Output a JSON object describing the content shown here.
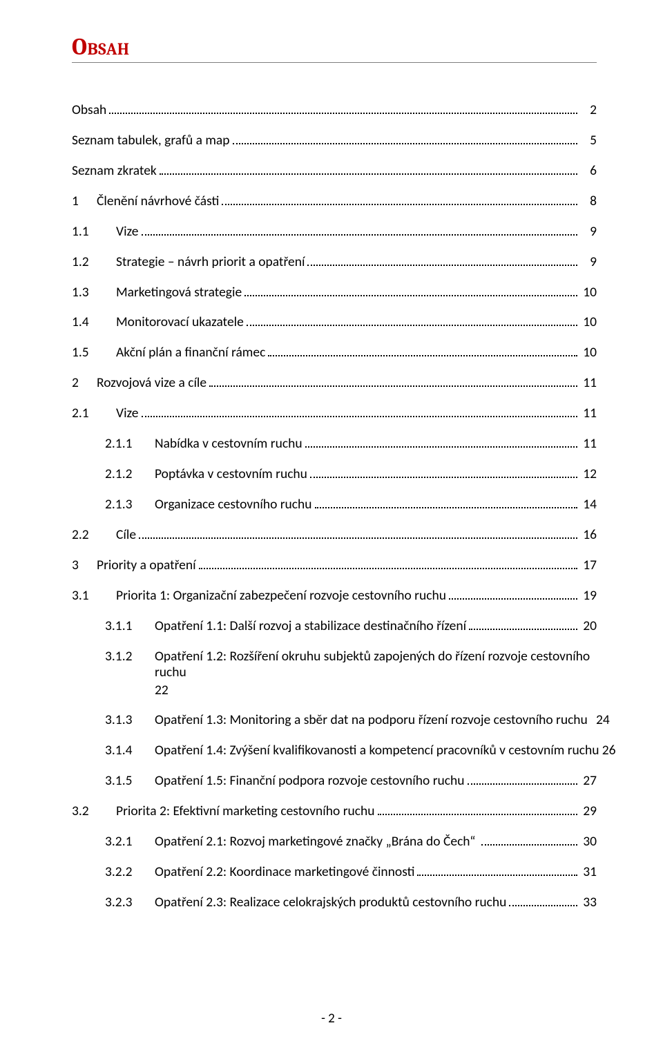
{
  "heading": "Obsah",
  "footer": "- 2 -",
  "colors": {
    "heading": "#c00000",
    "rule": "#7f7f7f",
    "text": "#000000",
    "background": "#ffffff",
    "leader": "#000000"
  },
  "fonts": {
    "heading_family": "Cambria",
    "body_family": "Calibri",
    "heading_size_pt": 26,
    "body_size_pt": 15
  },
  "toc": [
    {
      "level": 0,
      "num": "",
      "label": "Obsah",
      "page": "2"
    },
    {
      "level": 0,
      "num": "",
      "label": "Seznam tabulek, grafů a map",
      "page": "5"
    },
    {
      "level": 0,
      "num": "",
      "label": "Seznam zkratek",
      "page": "6"
    },
    {
      "level": 0,
      "num": "1",
      "label": "Členění návrhové části",
      "page": "8",
      "top": true
    },
    {
      "level": 1,
      "num": "1.1",
      "label": "Vize",
      "page": "9"
    },
    {
      "level": 1,
      "num": "1.2",
      "label": "Strategie – návrh priorit a opatření",
      "page": "9"
    },
    {
      "level": 1,
      "num": "1.3",
      "label": "Marketingová strategie",
      "page": "10"
    },
    {
      "level": 1,
      "num": "1.4",
      "label": "Monitorovací ukazatele",
      "page": "10"
    },
    {
      "level": 1,
      "num": "1.5",
      "label": "Akční plán a finanční rámec",
      "page": "10"
    },
    {
      "level": 0,
      "num": "2",
      "label": "Rozvojová vize a cíle",
      "page": "11",
      "top": true
    },
    {
      "level": 1,
      "num": "2.1",
      "label": "Vize",
      "page": "11"
    },
    {
      "level": 2,
      "num": "2.1.1",
      "label": "Nabídka v cestovním ruchu",
      "page": "11"
    },
    {
      "level": 2,
      "num": "2.1.2",
      "label": "Poptávka v cestovním ruchu",
      "page": "12"
    },
    {
      "level": 2,
      "num": "2.1.3",
      "label": "Organizace cestovního ruchu",
      "page": "14"
    },
    {
      "level": 1,
      "num": "2.2",
      "label": "Cíle",
      "page": "16"
    },
    {
      "level": 0,
      "num": "3",
      "label": "Priority a opatření",
      "page": "17",
      "top": true
    },
    {
      "level": 1,
      "num": "3.1",
      "label": "Priorita 1: Organizační zabezpečení rozvoje cestovního ruchu",
      "page": "19"
    },
    {
      "level": 2,
      "num": "3.1.1",
      "label": "Opatření 1.1: Další rozvoj a stabilizace destinačního řízení",
      "page": "20"
    },
    {
      "level": 2,
      "num": "3.1.2",
      "label": "Opatření 1.2: Rozšíření okruhu subjektů zapojených do řízení rozvoje cestovního ruchu",
      "page": "22",
      "noleader": true,
      "cont": true,
      "cont_label": "22"
    },
    {
      "level": 2,
      "num": "3.1.3",
      "label": "Opatření 1.3: Monitoring a sběr dat na podporu řízení rozvoje cestovního ruchu",
      "page": "24"
    },
    {
      "level": 2,
      "num": "3.1.4",
      "label": "Opatření 1.4: Zvýšení kvalifikovanosti a kompetencí pracovníků v cestovním ruchu",
      "page": "26",
      "shortleader": true
    },
    {
      "level": 2,
      "num": "3.1.5",
      "label": "Opatření 1.5: Finanční podpora rozvoje cestovního ruchu",
      "page": "27"
    },
    {
      "level": 1,
      "num": "3.2",
      "label": "Priorita 2: Efektivní marketing cestovního ruchu",
      "page": "29"
    },
    {
      "level": 2,
      "num": "3.2.1",
      "label": "Opatření 2.1: Rozvoj marketingové značky „Brána do Čech“ ",
      "page": "30"
    },
    {
      "level": 2,
      "num": "3.2.2",
      "label": "Opatření 2.2: Koordinace marketingové činnosti",
      "page": "31"
    },
    {
      "level": 2,
      "num": "3.2.3",
      "label": "Opatření 2.3: Realizace celokrajských produktů cestovního ruchu",
      "page": "33"
    }
  ]
}
